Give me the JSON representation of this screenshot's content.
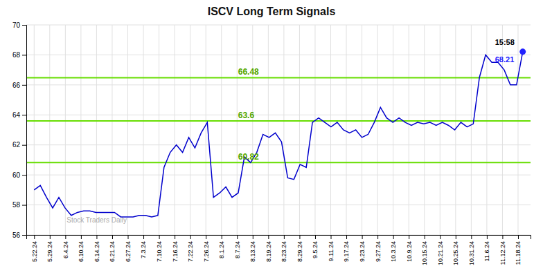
{
  "chart_data": {
    "type": "line",
    "title": "ISCV Long Term Signals",
    "color": "#0000cc",
    "grid": true,
    "xlim": [
      -0.5,
      31.8
    ],
    "xticks": [
      {
        "value": 0,
        "label": "5.22.24"
      },
      {
        "value": 1,
        "label": "5.29.24"
      },
      {
        "value": 2,
        "label": "6.4.24"
      },
      {
        "value": 3,
        "label": "6.10.24"
      },
      {
        "value": 4,
        "label": "6.14.24"
      },
      {
        "value": 5,
        "label": "6.21.24"
      },
      {
        "value": 6,
        "label": "6.27.24"
      },
      {
        "value": 7,
        "label": "7.3.24"
      },
      {
        "value": 8,
        "label": "7.10.24"
      },
      {
        "value": 9,
        "label": "7.16.24"
      },
      {
        "value": 10,
        "label": "7.22.24"
      },
      {
        "value": 11,
        "label": "7.26.24"
      },
      {
        "value": 12,
        "label": "8.1.24"
      },
      {
        "value": 13,
        "label": "8.7.24"
      },
      {
        "value": 14,
        "label": "8.13.24"
      },
      {
        "value": 15,
        "label": "8.19.24"
      },
      {
        "value": 16,
        "label": "8.23.24"
      },
      {
        "value": 17,
        "label": "8.29.24"
      },
      {
        "value": 18,
        "label": "9.5.24"
      },
      {
        "value": 19,
        "label": "9.11.24"
      },
      {
        "value": 20,
        "label": "9.17.24"
      },
      {
        "value": 21,
        "label": "9.23.24"
      },
      {
        "value": 22,
        "label": "9.27.24"
      },
      {
        "value": 23,
        "label": "10.3.24"
      },
      {
        "value": 24,
        "label": "10.9.24"
      },
      {
        "value": 25,
        "label": "10.15.24"
      },
      {
        "value": 26,
        "label": "10.21.24"
      },
      {
        "value": 27,
        "label": "10.25.24"
      },
      {
        "value": 28,
        "label": "10.31.24"
      },
      {
        "value": 29,
        "label": "11.6.24"
      },
      {
        "value": 30,
        "label": "11.12.24"
      },
      {
        "value": 31,
        "label": "11.18.24"
      }
    ],
    "ylim": [
      56,
      70
    ],
    "yticks": [
      56,
      58,
      60,
      62,
      64,
      66,
      68,
      70
    ],
    "values": [
      59.0,
      59.3,
      58.5,
      57.8,
      58.5,
      57.8,
      57.3,
      57.5,
      57.6,
      57.6,
      57.5,
      57.5,
      57.5,
      57.5,
      57.2,
      57.2,
      57.2,
      57.3,
      57.3,
      57.2,
      57.3,
      60.5,
      61.5,
      62.0,
      61.5,
      62.5,
      61.8,
      62.8,
      63.5,
      58.5,
      58.8,
      59.2,
      58.5,
      58.8,
      61.2,
      60.82,
      61.5,
      62.7,
      62.5,
      62.8,
      62.2,
      59.8,
      59.7,
      60.7,
      60.5,
      63.5,
      63.8,
      63.5,
      63.2,
      63.5,
      63.0,
      62.8,
      63.0,
      62.5,
      62.7,
      63.5,
      64.5,
      63.8,
      63.5,
      63.8,
      63.5,
      63.3,
      63.5,
      63.4,
      63.5,
      63.3,
      63.5,
      63.3,
      63.0,
      63.5,
      63.2,
      63.4,
      66.5,
      68.0,
      67.5,
      67.5,
      67.0,
      66.0,
      66.0,
      68.21
    ],
    "horizontal_lines": [
      {
        "value": 66.48,
        "label": "66.48",
        "color": "#66dd00"
      },
      {
        "value": 63.6,
        "label": "63.6",
        "color": "#66dd00"
      },
      {
        "value": 60.82,
        "label": "60.82",
        "color": "#66dd00"
      }
    ],
    "last_point": {
      "time": "15:58",
      "label": "68.21",
      "color": "#2222ff"
    },
    "watermark": "Stock Traders Daily"
  }
}
